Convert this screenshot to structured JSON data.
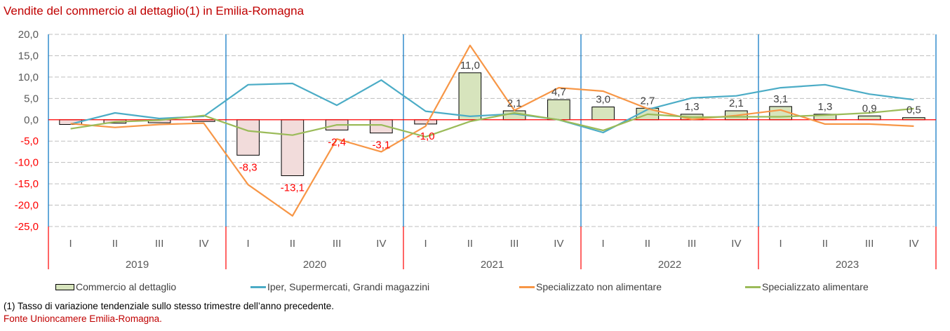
{
  "title": "Vendite del commercio al dettaglio(1) in Emilia-Romagna",
  "note": "(1) Tasso di variazione tendenziale sullo stesso trimestre dell’anno precedente.",
  "source": "Fonte Unioncamere Emilia-Romagna.",
  "colors": {
    "bar_positive": "#d7e4bd",
    "bar_negative": "#f2dcdb",
    "bar_border": "#000000",
    "iper": "#4bacc6",
    "non_alimentare": "#f79646",
    "alimentare": "#9bbb59",
    "zero_line": "#ff0000",
    "year_divider": "#0070c0",
    "negative_label": "#ff0000",
    "positive_label": "#404040"
  },
  "legend": [
    {
      "label": "Commercio al dettaglio",
      "kind": "bar"
    },
    {
      "label": "Iper, Supermercati, Grandi magazzini",
      "kind": "line",
      "color_key": "iper"
    },
    {
      "label": "Specializzato non alimentare",
      "kind": "line",
      "color_key": "non_alimentare"
    },
    {
      "label": "Specializzato alimentare",
      "kind": "line",
      "color_key": "alimentare"
    }
  ],
  "chart_data": {
    "type": "bar",
    "title": "Vendite del commercio al dettaglio(1) in Emilia-Romagna",
    "xlabel": "",
    "ylabel": "",
    "ylim": [
      -25,
      20
    ],
    "yticks": [
      20,
      15,
      10,
      5,
      0,
      -5,
      -10,
      -15,
      -20,
      -25
    ],
    "ytick_labels": [
      "20,0",
      "15,0",
      "10,0",
      "5,0",
      "0,0",
      "-5,0",
      "-10,0",
      "-15,0",
      "-20,0",
      "-25,0"
    ],
    "grid": true,
    "legend_position": "bottom",
    "years": [
      "2019",
      "2020",
      "2021",
      "2022",
      "2023"
    ],
    "quarters": [
      "I",
      "II",
      "III",
      "IV"
    ],
    "categories": [
      "2019 I",
      "2019 II",
      "2019 III",
      "2019 IV",
      "2020 I",
      "2020 II",
      "2020 III",
      "2020 IV",
      "2021 I",
      "2021 II",
      "2021 III",
      "2021 IV",
      "2022 I",
      "2022 II",
      "2022 III",
      "2022 IV",
      "2023 I",
      "2023 II",
      "2023 III",
      "2023 IV"
    ],
    "series": [
      {
        "name": "Commercio al dettaglio",
        "type": "bar",
        "values": [
          -1.1,
          -0.8,
          -0.7,
          -0.4,
          -8.3,
          -13.1,
          -2.4,
          -3.1,
          -1.0,
          11.0,
          2.1,
          4.7,
          3.0,
          2.7,
          1.3,
          2.1,
          3.1,
          1.3,
          0.9,
          0.5
        ],
        "data_labels": [
          "",
          "",
          "",
          "",
          "-8,3",
          "-13,1",
          "-2,4",
          "-3,1",
          "-1,0",
          "11,0",
          "2,1",
          "4,7",
          "3,0",
          "2,7",
          "1,3",
          "2,1",
          "3,1",
          "1,3",
          "0,9",
          "0,5"
        ]
      },
      {
        "name": "Iper, Supermercati, Grandi magazzini",
        "type": "line",
        "values": [
          -1.0,
          1.6,
          0.3,
          0.8,
          8.2,
          8.5,
          3.4,
          9.3,
          2.0,
          0.8,
          1.4,
          0.0,
          -3.0,
          2.4,
          5.1,
          5.6,
          7.5,
          8.2,
          6.0,
          4.7
        ]
      },
      {
        "name": "Specializzato non alimentare",
        "type": "line",
        "values": [
          -0.9,
          -1.8,
          -1.1,
          -0.8,
          -15.2,
          -22.5,
          -4.5,
          -7.5,
          -1.5,
          17.4,
          2.2,
          7.5,
          6.7,
          2.6,
          0.1,
          1.0,
          2.3,
          -1.0,
          -1.0,
          -1.5
        ]
      },
      {
        "name": "Specializzato alimentare",
        "type": "line",
        "values": [
          -2.1,
          -0.5,
          -0.1,
          1.0,
          -2.6,
          -3.6,
          -1.2,
          -1.2,
          -4.0,
          -0.4,
          1.6,
          0.0,
          -2.5,
          1.3,
          0.6,
          0.7,
          0.7,
          1.1,
          1.6,
          2.6
        ]
      }
    ]
  }
}
